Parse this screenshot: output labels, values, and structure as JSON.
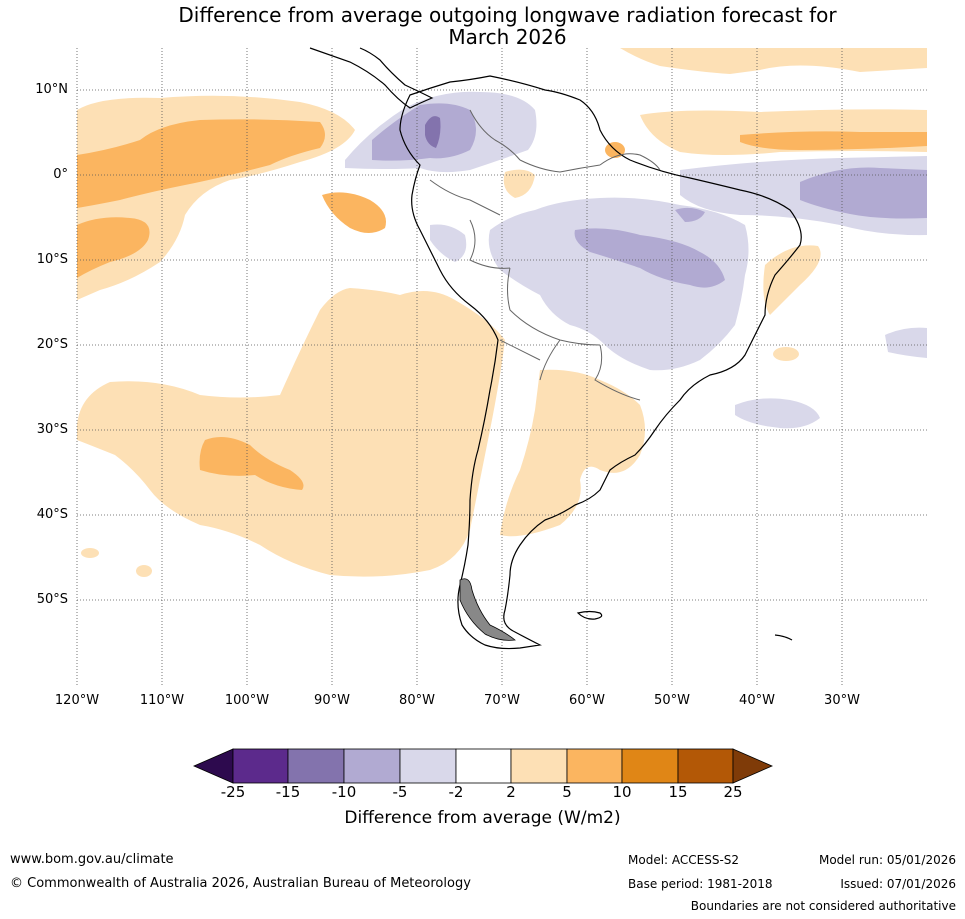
{
  "title_line1": "Difference from average outgoing longwave radiation forecast for",
  "title_line2": "March 2026",
  "lat_labels": [
    "10°N",
    "0°",
    "10°S",
    "20°S",
    "30°S",
    "40°S",
    "50°S"
  ],
  "lon_labels": [
    "120°W",
    "110°W",
    "100°W",
    "90°W",
    "80°W",
    "70°W",
    "60°W",
    "50°W",
    "40°W",
    "30°W"
  ],
  "colorbar": {
    "ticks": [
      "-25",
      "-15",
      "-10",
      "-5",
      "-2",
      "2",
      "5",
      "10",
      "15",
      "25"
    ],
    "colors": [
      "#2d0a4e",
      "#5c2a8c",
      "#8373ad",
      "#b1aad2",
      "#d9d8ea",
      "#ffffff",
      "#fde0b5",
      "#fbb560",
      "#e08616",
      "#b35806",
      "#7f3b08"
    ],
    "label": "Difference from average (W/m2)"
  },
  "footer": {
    "website": "www.bom.gov.au/climate",
    "copyright": "© Commonwealth of Australia 2026, Australian Bureau of Meteorology",
    "model": "Model: ACCESS-S2",
    "base_period": "Base period: 1981-2018",
    "model_run": "Model run: 05/01/2026",
    "issued": "Issued: 07/01/2026",
    "disclaimer": "Boundaries are not considered authoritative"
  }
}
